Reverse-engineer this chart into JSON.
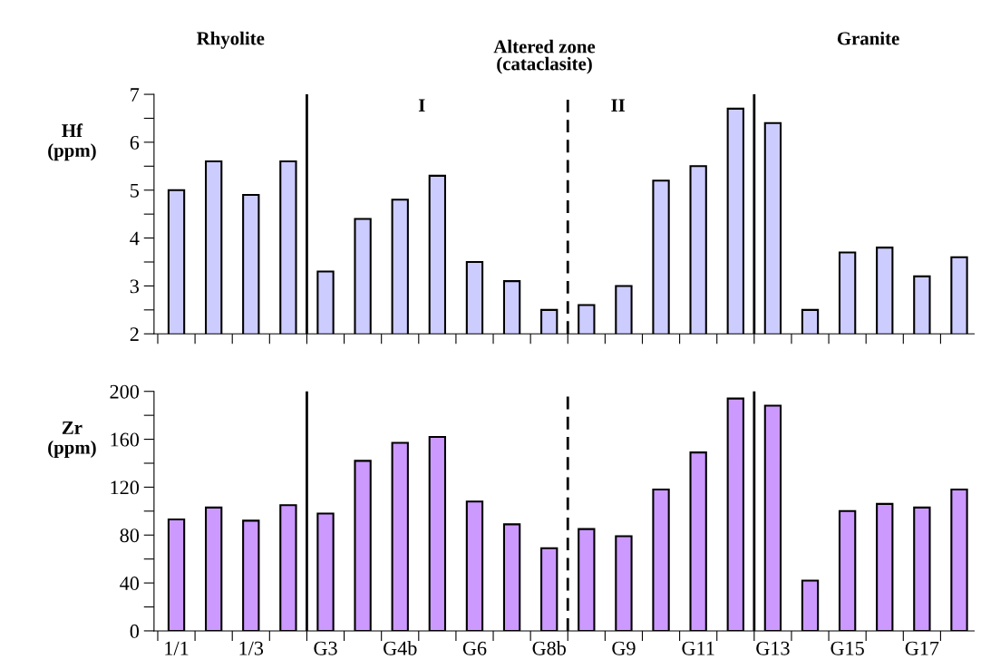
{
  "chart_data": [
    {
      "type": "bar",
      "ylabel": "Hf\n(ppm)",
      "categories": [
        null,
        null,
        null,
        null,
        null,
        null,
        null,
        null,
        null,
        null,
        null,
        null,
        null,
        null,
        null,
        null,
        null,
        null,
        null,
        null,
        null,
        null
      ],
      "values": [
        5.0,
        5.6,
        4.9,
        5.6,
        3.3,
        4.4,
        4.8,
        5.3,
        3.5,
        3.1,
        2.5,
        2.6,
        3.0,
        5.2,
        5.5,
        6.7,
        6.4,
        2.5,
        3.7,
        3.8,
        3.2,
        3.6
      ],
      "color": "#ccccff",
      "ylim": [
        2,
        7
      ],
      "yticks": [
        2,
        {
          "value": 2.5,
          "label": null
        },
        3,
        {
          "value": 3.5,
          "label": null
        },
        4,
        {
          "value": 4.5,
          "label": null
        },
        5,
        {
          "value": 5.5,
          "label": null
        },
        6,
        {
          "value": 6.5,
          "label": null
        },
        7
      ],
      "annotations": [
        "Rhyolite",
        "Altered zone\n(cataclasite)",
        "Granite",
        "I",
        "II"
      ]
    },
    {
      "type": "bar",
      "ylabel": "Zr\n(ppm)",
      "categories": [
        "1/1",
        null,
        "1/3",
        null,
        "G3",
        null,
        "G4b",
        null,
        "G6",
        null,
        "G8b",
        null,
        "G9",
        null,
        "G11",
        null,
        "G13",
        null,
        "G15",
        null,
        "G17",
        null
      ],
      "values": [
        93,
        103,
        92,
        105,
        98,
        142,
        157,
        162,
        108,
        89,
        69,
        85,
        79,
        118,
        149,
        194,
        188,
        42,
        100,
        106,
        103,
        118
      ],
      "color": "#cc99ff",
      "ylim": [
        0,
        200
      ],
      "yticks": [
        0,
        {
          "value": 20,
          "label": null
        },
        40,
        {
          "value": 60,
          "label": null
        },
        80,
        {
          "value": 100,
          "label": null
        },
        120,
        {
          "value": 140,
          "label": null
        },
        160,
        {
          "value": 180,
          "label": null
        },
        200
      ]
    }
  ]
}
